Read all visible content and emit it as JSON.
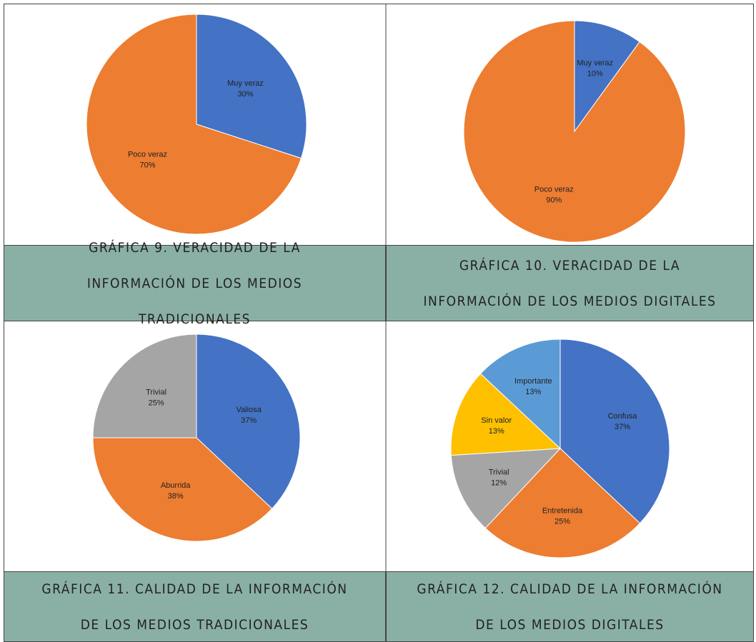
{
  "chart_data": [
    {
      "type": "pie",
      "title": "GRÁFICA 9. VERACIDAD DE LA INFORMACIÓN DE LOS MEDIOS TRADICIONALES",
      "categories": [
        "Muy veraz",
        "Poco veraz"
      ],
      "values": [
        30,
        70
      ],
      "value_labels": [
        "30%",
        "70%"
      ],
      "colors": [
        "#4472c4",
        "#ed7d31"
      ]
    },
    {
      "type": "pie",
      "title": "GRÁFICA 10. VERACIDAD DE LA INFORMACIÓN DE LOS MEDIOS DIGITALES",
      "categories": [
        "Muy veraz",
        "Poco veraz"
      ],
      "values": [
        10,
        90
      ],
      "value_labels": [
        "10%",
        "90%"
      ],
      "colors": [
        "#4472c4",
        "#ed7d31"
      ]
    },
    {
      "type": "pie",
      "title": "GRÁFICA 11. CALIDAD DE LA INFORMACIÓN DE LOS MEDIOS TRADICIONALES",
      "categories": [
        "Valiosa",
        "Aburrida",
        "Trivial"
      ],
      "values": [
        37,
        38,
        25
      ],
      "value_labels": [
        "37%",
        "38%",
        "25%"
      ],
      "colors": [
        "#4472c4",
        "#ed7d31",
        "#a5a5a5"
      ]
    },
    {
      "type": "pie",
      "title": "GRÁFICA 12. CALIDAD DE LA INFORMACIÓN DE LOS MEDIOS DIGITALES",
      "categories": [
        "Confusa",
        "Entretenida",
        "Trivial",
        "Sin valor",
        "Importante"
      ],
      "values": [
        37,
        25,
        12,
        13,
        13
      ],
      "value_labels": [
        "37%",
        "25%",
        "12%",
        "13%",
        "13%"
      ],
      "colors": [
        "#4472c4",
        "#ed7d31",
        "#a5a5a5",
        "#ffc000",
        "#5b9bd5"
      ]
    }
  ]
}
